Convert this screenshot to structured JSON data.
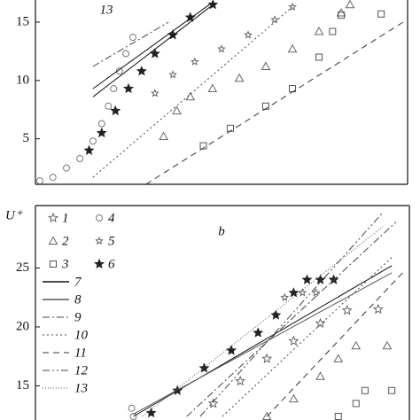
{
  "chart_data": [
    {
      "type": "scatter",
      "label": "13",
      "xscale": "log",
      "xlim": [
        1.3,
        13000
      ],
      "ylim": [
        1.1,
        16.9
      ],
      "yticks": [
        5,
        10,
        15
      ],
      "series": [
        {
          "marker": "circle",
          "color": "#777777",
          "x": [
            1.45,
            2.0,
            2.8,
            3.9,
            5.4,
            6.7,
            7.9,
            9.0,
            10.4,
            12.2,
            14.5
          ],
          "values": [
            1.4,
            1.7,
            2.5,
            3.3,
            4.8,
            6.3,
            7.8,
            9.3,
            10.8,
            12.3,
            13.7
          ]
        },
        {
          "marker": "filled-star",
          "color": "#222222",
          "x": [
            4.9,
            6.7,
            9.4,
            13,
            18,
            25,
            39,
            60,
            105
          ],
          "values": [
            4.0,
            5.5,
            7.4,
            9.3,
            10.8,
            12.3,
            13.9,
            15.4,
            16.5
          ]
        },
        {
          "marker": "small-star",
          "color": "#666666",
          "x": [
            25,
            39,
            67,
            130,
            251,
            485,
            752
          ],
          "values": [
            8.9,
            10.5,
            11.6,
            12.7,
            13.9,
            15.2,
            16.3
          ]
        },
        {
          "marker": "triangle",
          "color": "#666666",
          "x": [
            31,
            43,
            60,
            104,
            202,
            389,
            752,
            1452,
            2513,
            3126
          ],
          "values": [
            5.2,
            7.4,
            8.6,
            9.3,
            10.2,
            11.2,
            12.7,
            14.2,
            15.8,
            16.5
          ]
        },
        {
          "marker": "square",
          "color": "#555555",
          "x": [
            83,
            162,
            389,
            752,
            1452,
            2030,
            2513,
            6745
          ],
          "values": [
            4.4,
            5.9,
            7.8,
            9.3,
            12.0,
            14.2,
            15.6,
            15.7
          ]
        },
        {
          "line": "solid",
          "color": "#111111",
          "x": [
            5.4,
            105
          ],
          "values": [
            8.6,
            16.5
          ]
        },
        {
          "line": "solid",
          "color": "#111111",
          "x": [
            5.4,
            96
          ],
          "values": [
            9.3,
            16.5
          ]
        },
        {
          "line": "dashdot",
          "color": "#444444",
          "x": [
            5.4,
            35
          ],
          "values": [
            11.2,
            15.0
          ]
        },
        {
          "line": "dotted",
          "color": "#444444",
          "x": [
            5.4,
            752
          ],
          "values": [
            1.7,
            16.3
          ]
        },
        {
          "line": "dashed",
          "color": "#333333",
          "x": [
            20,
            11660
          ],
          "values": [
            1.1,
            15.0
          ]
        }
      ]
    },
    {
      "type": "scatter",
      "label": "b",
      "ylabel": "U⁺",
      "xscale": "log",
      "xlim": [
        1.3,
        13000
      ],
      "ylim": [
        12.1,
        30.3
      ],
      "yticks": [
        15,
        20,
        25
      ],
      "series": [
        {
          "name": "1",
          "marker": "star",
          "color": "#666666",
          "x": [
            104,
            202,
            389,
            752,
            1452,
            2806,
            6040
          ],
          "values": [
            13.5,
            15.4,
            17.3,
            18.8,
            20.3,
            21.4,
            21.5
          ]
        },
        {
          "name": "2",
          "marker": "triangle",
          "color": "#666666",
          "x": [
            389,
            752,
            1452,
            2256,
            3492,
            7520
          ],
          "values": [
            12.4,
            13.9,
            15.8,
            17.3,
            18.4,
            18.4
          ]
        },
        {
          "name": "3",
          "marker": "square",
          "color": "#555555",
          "x": [
            2256,
            3492,
            4360,
            8430
          ],
          "values": [
            12.4,
            13.5,
            14.6,
            14.6
          ]
        },
        {
          "name": "4",
          "marker": "circle",
          "color": "#777777",
          "x": [
            13.9,
            14.5
          ],
          "values": [
            13.1,
            12.4
          ]
        },
        {
          "name": "5",
          "marker": "small-star",
          "color": "#666666",
          "x": [
            603,
            935,
            1300
          ],
          "values": [
            22.5,
            22.9,
            22.9
          ]
        },
        {
          "name": "6",
          "marker": "filled-star",
          "color": "#222222",
          "x": [
            22.5,
            43,
            83,
            162,
            313,
            485,
            752,
            1045,
            1452,
            2018
          ],
          "values": [
            12.7,
            14.6,
            16.5,
            18.0,
            19.5,
            21.0,
            22.9,
            24.0,
            24.0,
            24.0
          ]
        },
        {
          "name": "7",
          "line": "solid",
          "color": "#111111",
          "x": [
            14.5,
            8430
          ],
          "values": [
            12.4,
            25.2
          ]
        },
        {
          "name": "8",
          "line": "solid",
          "color": "#555555",
          "x": [
            14.5,
            8430
          ],
          "values": [
            12.6,
            24.6
          ]
        },
        {
          "name": "9",
          "line": "dashdot",
          "color": "#444444",
          "x": [
            54,
            9340
          ],
          "values": [
            12.4,
            28.9
          ]
        },
        {
          "name": "10",
          "line": "dotted",
          "color": "#444444",
          "x": [
            130,
            8430
          ],
          "values": [
            12.4,
            25.9
          ]
        },
        {
          "name": "11",
          "line": "dashed",
          "color": "#333333",
          "x": [
            389,
            11660
          ],
          "values": [
            12.4,
            24.8
          ]
        },
        {
          "name": "12",
          "line": "dashdotdot",
          "color": "#444444",
          "x": [
            75,
            6745
          ],
          "values": [
            12.4,
            29.7
          ]
        },
        {
          "name": "13",
          "line": "finedot",
          "color": "#555555",
          "x": [
            18,
            6745
          ],
          "values": [
            12.4,
            28.5
          ]
        }
      ]
    }
  ]
}
